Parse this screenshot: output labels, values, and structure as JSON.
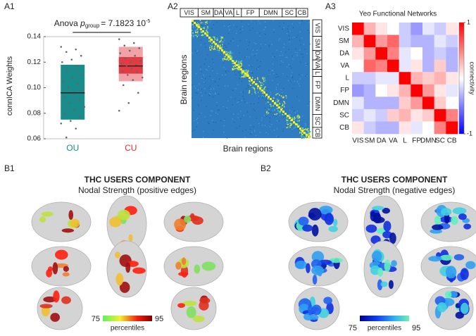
{
  "a1": {
    "panel": "A1",
    "type": "box",
    "annotation": {
      "prefix": "Anova",
      "p": "p",
      "sub": "group",
      "eq": "= 7.1823 10",
      "sup": "-5"
    },
    "ylabel": "connICA Weights",
    "ylim": [
      0.06,
      0.14
    ],
    "yticks": [
      0.06,
      0.08,
      {
        "value": 0.1,
        "label": "0.10"
      },
      0.12,
      0.14
    ],
    "categories": [
      "OU",
      "CU"
    ],
    "series": [
      {
        "name": "OU",
        "color": "#1a8c8c",
        "q1": 0.075,
        "median": 0.096,
        "q3": 0.118,
        "points": [
          0.132,
          0.13,
          0.128,
          0.125,
          0.122,
          0.12,
          0.117,
          0.113,
          0.11,
          0.108,
          0.105,
          0.103,
          0.1,
          0.098,
          0.095,
          0.093,
          0.09,
          0.088,
          0.085,
          0.083,
          0.08,
          0.077,
          0.074,
          0.072,
          0.068,
          0.061
        ]
      },
      {
        "name": "CU",
        "color": "#e0303a",
        "q1": 0.105,
        "median": 0.117,
        "q3": 0.132,
        "ci": [
          0.111,
          0.124
        ],
        "points": [
          0.138,
          0.135,
          0.133,
          0.131,
          0.129,
          0.127,
          0.125,
          0.123,
          0.121,
          0.12,
          0.119,
          0.118,
          0.117,
          0.116,
          0.115,
          0.113,
          0.112,
          0.11,
          0.108,
          0.106,
          0.102,
          0.096,
          0.088,
          0.082
        ]
      }
    ]
  },
  "a2": {
    "panel": "A2",
    "xlabel": "Brain regions",
    "ylabel": "Brain regions",
    "networks": [
      "VIS",
      "SM",
      "DA",
      "VA",
      "L",
      "FP",
      "DMN",
      "SC",
      "CB"
    ]
  },
  "a3": {
    "panel": "A3",
    "type": "heatmap",
    "title": "Yeo Functional Networks",
    "rows": [
      "VIS",
      "SM",
      "DA",
      "VA",
      "L",
      "FP",
      "DMN",
      "SC",
      "CB"
    ],
    "columns": [
      "VIS",
      "SM",
      "DA",
      "VA",
      "L",
      "FP",
      "DMN",
      "SC",
      "CB"
    ],
    "values": [
      [
        1,
        0.3,
        0.1,
        0.0,
        -0.2,
        -0.4,
        -0.1,
        -0.2,
        0.1
      ],
      [
        0.3,
        1,
        0.4,
        0.6,
        -0.2,
        -0.3,
        -0.3,
        -0.1,
        -0.2
      ],
      [
        0.1,
        0.4,
        1,
        0.5,
        -0.1,
        0.0,
        -0.3,
        -0.2,
        -0.3
      ],
      [
        0.0,
        0.6,
        0.5,
        1,
        -0.1,
        0.1,
        -0.3,
        0.2,
        -0.3
      ],
      [
        -0.2,
        -0.2,
        -0.1,
        -0.1,
        1,
        0.3,
        0.2,
        0.3,
        0.1
      ],
      [
        -0.4,
        -0.3,
        0.0,
        0.1,
        0.3,
        1,
        0.4,
        0.1,
        -0.1
      ],
      [
        -0.1,
        -0.3,
        -0.3,
        -0.3,
        0.2,
        0.4,
        1,
        0.2,
        0.0
      ],
      [
        -0.2,
        -0.1,
        -0.2,
        0.2,
        0.3,
        0.1,
        0.2,
        1,
        0.5
      ],
      [
        0.1,
        -0.2,
        -0.3,
        -0.3,
        0.1,
        -0.1,
        0.0,
        0.5,
        1
      ]
    ],
    "colorbar_label": "connectivity",
    "clim": [
      -1,
      1
    ],
    "cticks": [
      1,
      -1
    ]
  },
  "b1": {
    "panel": "B1",
    "title": "THC USERS COMPONENT",
    "subtitle": "Nodal Strength (positive edges)",
    "cbar_min": "75",
    "cbar_label": "percentiles",
    "cbar_max": "95"
  },
  "b2": {
    "panel": "B2",
    "title": "THC USERS COMPONENT",
    "subtitle": "Nodal Strength (negative edges)",
    "cbar_min": "75",
    "cbar_label": "percentiles",
    "cbar_max": "95"
  }
}
